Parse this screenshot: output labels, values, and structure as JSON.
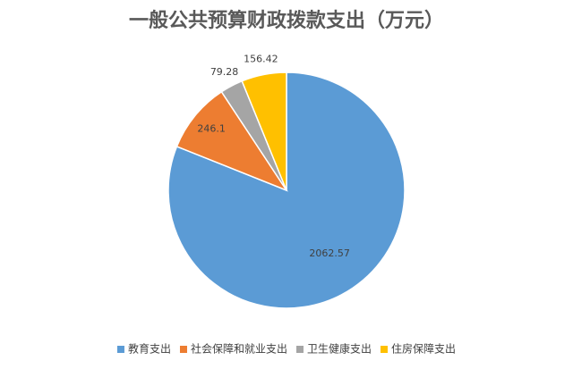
{
  "chart_data": {
    "type": "pie",
    "title": "一般公共预算财政拨款支出（万元）",
    "categories": [
      "教育支出",
      "社会保障和就业支出",
      "卫生健康支出",
      "住房保障支出"
    ],
    "values": [
      2062.57,
      246.1,
      79.28,
      156.42
    ],
    "colors": [
      "#5b9bd5",
      "#ed7d31",
      "#a5a5a5",
      "#ffc000"
    ],
    "legend": "bottom"
  }
}
